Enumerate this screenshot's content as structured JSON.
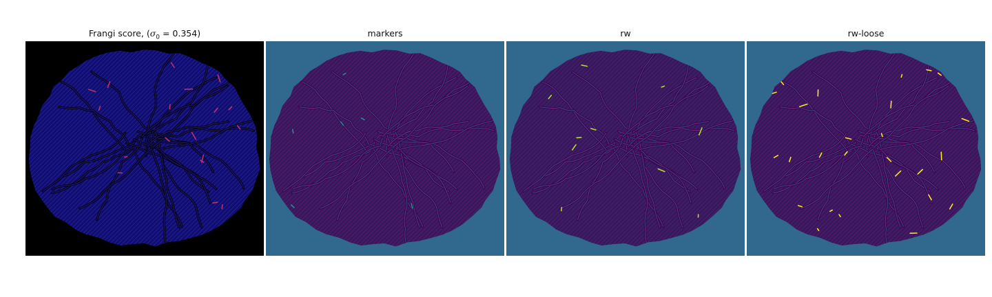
{
  "panels": [
    {
      "title_prefix": "Frangi score, (",
      "title_symbol": "σ",
      "title_subscript": "0",
      "title_suffix": " = 0.354)",
      "background": "#000000",
      "blob_fill": "#0f0d70",
      "vessel_color": "#2a1f9e",
      "highlight_color": "#c0306a",
      "highlight_count": 18
    },
    {
      "title": "markers",
      "background": "#31688e",
      "blob_fill": "#3b1f63",
      "vessel_color": "#440154",
      "highlight_color": "#21918c",
      "highlight_count": 6
    },
    {
      "title": "rw",
      "background": "#31688e",
      "blob_fill": "#3b1f63",
      "vessel_color": "#440154",
      "highlight_color": "#b5de2b",
      "highlight_count": 10
    },
    {
      "title": "rw-loose",
      "background": "#31688e",
      "blob_fill": "#3b1f63",
      "vessel_color": "#440154",
      "highlight_color": "#fde725",
      "highlight_count": 28
    }
  ]
}
